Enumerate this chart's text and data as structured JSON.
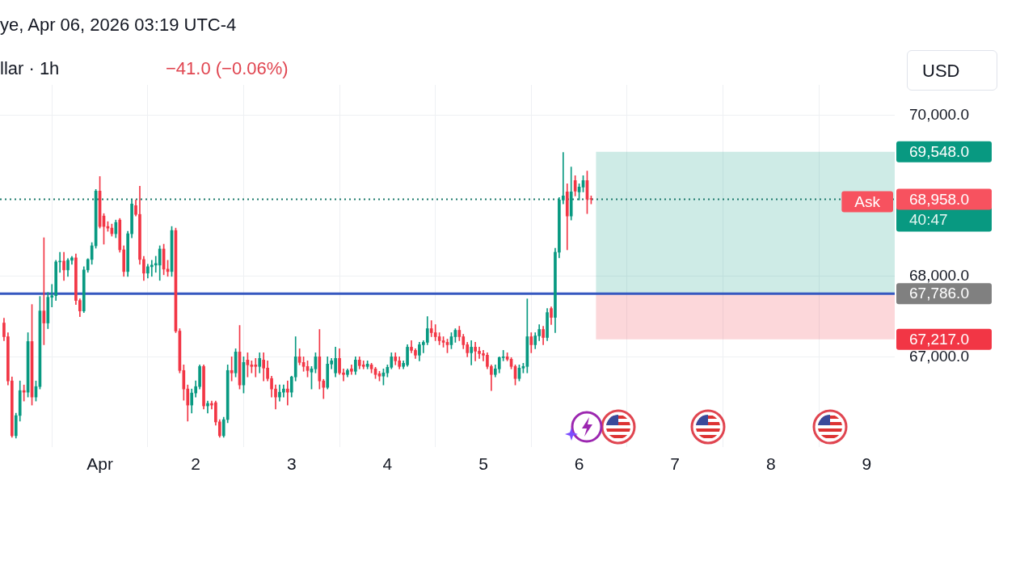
{
  "chart_data": {
    "type": "candlestick",
    "title": "llar · 1h",
    "subtitle": "−41.0 (−0.06%)",
    "annotations": [
      "ye, Apr 06, 2026 03:19 UTC-4",
      "USD",
      {
        "text": "Ask",
        "y": 68958
      },
      "40:47"
    ],
    "x": [
      "2026-03-31T00:00",
      "2026-03-31T01:00",
      "2026-03-31T02:00",
      "2026-03-31T03:00",
      "2026-03-31T04:00",
      "2026-03-31T05:00",
      "2026-03-31T06:00",
      "2026-03-31T07:00",
      "2026-03-31T08:00",
      "2026-03-31T09:00",
      "2026-03-31T10:00",
      "2026-03-31T11:00",
      "2026-03-31T12:00",
      "2026-03-31T13:00",
      "2026-03-31T14:00",
      "2026-03-31T15:00",
      "2026-03-31T16:00",
      "2026-03-31T17:00",
      "2026-03-31T18:00",
      "2026-03-31T19:00",
      "2026-03-31T20:00",
      "2026-03-31T21:00",
      "2026-03-31T22:00",
      "2026-03-31T23:00",
      "2026-04-01T00:00",
      "2026-04-01T01:00",
      "2026-04-01T02:00",
      "2026-04-01T03:00",
      "2026-04-01T04:00",
      "2026-04-01T05:00",
      "2026-04-01T06:00",
      "2026-04-01T07:00",
      "2026-04-01T08:00",
      "2026-04-01T09:00",
      "2026-04-01T10:00",
      "2026-04-01T11:00",
      "2026-04-01T12:00",
      "2026-04-01T13:00",
      "2026-04-01T14:00",
      "2026-04-01T15:00",
      "2026-04-01T16:00",
      "2026-04-01T17:00",
      "2026-04-01T18:00",
      "2026-04-01T19:00",
      "2026-04-01T20:00",
      "2026-04-01T21:00",
      "2026-04-01T22:00",
      "2026-04-01T23:00",
      "2026-04-02T00:00",
      "2026-04-02T01:00",
      "2026-04-02T02:00",
      "2026-04-02T03:00",
      "2026-04-02T04:00",
      "2026-04-02T05:00",
      "2026-04-02T06:00",
      "2026-04-02T07:00",
      "2026-04-02T08:00",
      "2026-04-02T09:00",
      "2026-04-02T10:00",
      "2026-04-02T11:00",
      "2026-04-02T12:00",
      "2026-04-02T13:00",
      "2026-04-02T14:00",
      "2026-04-02T15:00",
      "2026-04-02T16:00",
      "2026-04-02T17:00",
      "2026-04-02T18:00",
      "2026-04-02T19:00",
      "2026-04-02T20:00",
      "2026-04-02T21:00",
      "2026-04-02T22:00",
      "2026-04-02T23:00",
      "2026-04-03T00:00",
      "2026-04-03T01:00",
      "2026-04-03T02:00",
      "2026-04-03T03:00",
      "2026-04-03T04:00",
      "2026-04-03T05:00",
      "2026-04-03T06:00",
      "2026-04-03T07:00",
      "2026-04-03T08:00",
      "2026-04-03T09:00",
      "2026-04-03T10:00",
      "2026-04-03T11:00",
      "2026-04-03T12:00",
      "2026-04-03T13:00",
      "2026-04-03T14:00",
      "2026-04-03T15:00",
      "2026-04-03T16:00",
      "2026-04-03T17:00",
      "2026-04-03T18:00",
      "2026-04-03T19:00",
      "2026-04-03T20:00",
      "2026-04-03T21:00",
      "2026-04-03T22:00",
      "2026-04-03T23:00",
      "2026-04-04T00:00",
      "2026-04-04T01:00",
      "2026-04-04T02:00",
      "2026-04-04T03:00",
      "2026-04-04T04:00",
      "2026-04-04T05:00",
      "2026-04-04T06:00",
      "2026-04-04T07:00",
      "2026-04-04T08:00",
      "2026-04-04T09:00",
      "2026-04-04T10:00",
      "2026-04-04T11:00",
      "2026-04-04T12:00",
      "2026-04-04T13:00",
      "2026-04-04T14:00",
      "2026-04-04T15:00",
      "2026-04-04T16:00",
      "2026-04-04T17:00",
      "2026-04-04T18:00",
      "2026-04-04T19:00",
      "2026-04-04T20:00",
      "2026-04-04T21:00",
      "2026-04-04T22:00",
      "2026-04-04T23:00",
      "2026-04-05T00:00",
      "2026-04-05T01:00",
      "2026-04-05T02:00",
      "2026-04-05T03:00",
      "2026-04-05T04:00",
      "2026-04-05T05:00",
      "2026-04-05T06:00",
      "2026-04-05T07:00",
      "2026-04-05T08:00",
      "2026-04-05T09:00",
      "2026-04-05T10:00",
      "2026-04-05T11:00",
      "2026-04-05T12:00",
      "2026-04-05T13:00",
      "2026-04-05T14:00",
      "2026-04-05T15:00",
      "2026-04-05T16:00",
      "2026-04-05T17:00",
      "2026-04-05T18:00",
      "2026-04-05T19:00",
      "2026-04-05T20:00",
      "2026-04-05T21:00",
      "2026-04-05T22:00",
      "2026-04-05T23:00",
      "2026-04-06T00:00",
      "2026-04-06T01:00",
      "2026-04-06T02:00",
      "2026-04-06T03:00"
    ],
    "ohlc": [
      [
        67420,
        67480,
        67200,
        67250
      ],
      [
        67250,
        67300,
        66650,
        66700
      ],
      [
        66700,
        66750,
        66000,
        66020
      ],
      [
        66020,
        66300,
        65990,
        66270
      ],
      [
        66270,
        66700,
        66200,
        66580
      ],
      [
        66580,
        66650,
        66450,
        66560
      ],
      [
        66560,
        67300,
        66500,
        67190
      ],
      [
        67190,
        67650,
        66400,
        66500
      ],
      [
        66500,
        66700,
        66450,
        66630
      ],
      [
        66630,
        67750,
        66600,
        67570
      ],
      [
        67570,
        68480,
        67150,
        67420
      ],
      [
        67420,
        67800,
        67350,
        67740
      ],
      [
        67740,
        67900,
        67620,
        67760
      ],
      [
        67760,
        68200,
        67700,
        68180
      ],
      [
        68180,
        68300,
        68050,
        68190
      ],
      [
        68190,
        68300,
        67950,
        68080
      ],
      [
        68080,
        68220,
        68000,
        68200
      ],
      [
        68200,
        68250,
        68150,
        68230
      ],
      [
        68230,
        68280,
        67650,
        67700
      ],
      [
        67700,
        67720,
        67500,
        67570
      ],
      [
        67570,
        68120,
        67550,
        68080
      ],
      [
        68080,
        68220,
        68050,
        68210
      ],
      [
        68210,
        68420,
        68150,
        68380
      ],
      [
        68380,
        69080,
        68350,
        69060
      ],
      [
        69060,
        69240,
        68600,
        68620
      ],
      [
        68750,
        68780,
        68400,
        68620
      ],
      [
        68620,
        68680,
        68560,
        68600
      ],
      [
        68600,
        68650,
        68500,
        68530
      ],
      [
        68530,
        68700,
        68480,
        68670
      ],
      [
        68700,
        68720,
        68300,
        68330
      ],
      [
        68330,
        68380,
        68000,
        68060
      ],
      [
        68060,
        68560,
        68000,
        68530
      ],
      [
        68530,
        68950,
        68480,
        68900
      ],
      [
        68880,
        68950,
        68750,
        68770
      ],
      [
        68770,
        69120,
        68150,
        68210
      ],
      [
        68210,
        68250,
        67950,
        68040
      ],
      [
        68040,
        68150,
        67980,
        68120
      ],
      [
        68120,
        68200,
        68000,
        68140
      ],
      [
        68140,
        68250,
        68050,
        68160
      ],
      [
        68140,
        68380,
        67950,
        68340
      ],
      [
        68340,
        68400,
        68020,
        68090
      ],
      [
        68090,
        68200,
        68000,
        68060
      ],
      [
        68060,
        68620,
        68000,
        68570
      ],
      [
        68570,
        68600,
        67300,
        67320
      ],
      [
        67320,
        67350,
        66800,
        66830
      ],
      [
        66830,
        66900,
        66460,
        66600
      ],
      [
        66600,
        66650,
        66200,
        66400
      ],
      [
        66400,
        66600,
        66300,
        66550
      ],
      [
        66550,
        66700,
        66500,
        66630
      ],
      [
        66630,
        66900,
        66600,
        66880
      ],
      [
        66880,
        66900,
        66350,
        66390
      ],
      [
        66390,
        66450,
        66300,
        66420
      ],
      [
        66420,
        66450,
        66350,
        66400
      ],
      [
        66430,
        66450,
        66150,
        66190
      ],
      [
        66190,
        66220,
        66000,
        66020
      ],
      [
        66020,
        66250,
        66000,
        66220
      ],
      [
        66220,
        66900,
        66180,
        66830
      ],
      [
        66830,
        67000,
        66700,
        66800
      ],
      [
        66800,
        67100,
        66750,
        67060
      ],
      [
        67060,
        67390,
        66600,
        66650
      ],
      [
        66650,
        67000,
        66550,
        66930
      ],
      [
        66960,
        67050,
        66750,
        66900
      ],
      [
        66900,
        66950,
        66800,
        66880
      ],
      [
        66900,
        66980,
        66750,
        66880
      ],
      [
        66880,
        67050,
        66800,
        66980
      ],
      [
        66960,
        67050,
        66700,
        66860
      ],
      [
        66860,
        66950,
        66700,
        66730
      ],
      [
        66730,
        66760,
        66500,
        66600
      ],
      [
        66600,
        66650,
        66350,
        66500
      ],
      [
        66500,
        66650,
        66450,
        66560
      ],
      [
        66560,
        66650,
        66500,
        66600
      ],
      [
        66600,
        66700,
        66400,
        66560
      ],
      [
        66560,
        66760,
        66500,
        66750
      ],
      [
        66750,
        67250,
        66700,
        67000
      ],
      [
        67000,
        67100,
        66900,
        66930
      ],
      [
        66930,
        67000,
        66820,
        66880
      ],
      [
        66880,
        66950,
        66750,
        66830
      ],
      [
        66810,
        66880,
        66600,
        66850
      ],
      [
        66850,
        67050,
        66800,
        67000
      ],
      [
        67000,
        67340,
        66600,
        66700
      ],
      [
        66700,
        66720,
        66480,
        66620
      ],
      [
        66620,
        67000,
        66600,
        66910
      ],
      [
        66910,
        66980,
        66850,
        66950
      ],
      [
        66800,
        67120,
        66750,
        66980
      ],
      [
        66980,
        67100,
        66780,
        66800
      ],
      [
        66800,
        66850,
        66700,
        66780
      ],
      [
        66780,
        66850,
        66750,
        66830
      ],
      [
        66850,
        66900,
        66780,
        66820
      ],
      [
        66820,
        67000,
        66780,
        66960
      ],
      [
        66960,
        67000,
        66850,
        66890
      ],
      [
        66900,
        66950,
        66850,
        66880
      ],
      [
        66880,
        66950,
        66850,
        66910
      ],
      [
        66900,
        66920,
        66800,
        66850
      ],
      [
        66850,
        66870,
        66730,
        66780
      ],
      [
        66790,
        66820,
        66700,
        66760
      ],
      [
        66760,
        66850,
        66650,
        66800
      ],
      [
        66800,
        66900,
        66750,
        66870
      ],
      [
        66870,
        67050,
        66850,
        67000
      ],
      [
        67000,
        67050,
        66900,
        66950
      ],
      [
        66950,
        67000,
        66850,
        66880
      ],
      [
        66880,
        66950,
        66850,
        66920
      ],
      [
        66900,
        67150,
        66880,
        67120
      ],
      [
        67120,
        67200,
        67050,
        67080
      ],
      [
        67080,
        67100,
        66980,
        67020
      ],
      [
        67020,
        67180,
        66950,
        67150
      ],
      [
        67150,
        67200,
        67050,
        67180
      ],
      [
        67180,
        67500,
        67150,
        67350
      ],
      [
        67350,
        67450,
        67250,
        67300
      ],
      [
        67300,
        67400,
        67200,
        67250
      ],
      [
        67250,
        67300,
        67150,
        67200
      ],
      [
        67200,
        67250,
        67120,
        67180
      ],
      [
        67180,
        67220,
        67050,
        67150
      ],
      [
        67150,
        67300,
        67100,
        67250
      ],
      [
        67250,
        67350,
        67180,
        67330
      ],
      [
        67330,
        67380,
        67200,
        67250
      ],
      [
        67250,
        67280,
        67100,
        67150
      ],
      [
        67150,
        67180,
        67000,
        67050
      ],
      [
        67050,
        67200,
        66900,
        67120
      ],
      [
        67120,
        67180,
        66950,
        67070
      ],
      [
        67070,
        67120,
        66980,
        67040
      ],
      [
        67040,
        67080,
        66950,
        67020
      ],
      [
        67020,
        67050,
        66850,
        66880
      ],
      [
        66880,
        66900,
        66580,
        66780
      ],
      [
        66780,
        66900,
        66750,
        66850
      ],
      [
        66850,
        67000,
        66800,
        66990
      ],
      [
        66990,
        67080,
        66950,
        67000
      ],
      [
        67000,
        67050,
        66950,
        66970
      ],
      [
        66970,
        66990,
        66850,
        66880
      ],
      [
        66880,
        66900,
        66650,
        66730
      ],
      [
        66730,
        66900,
        66700,
        66860
      ],
      [
        66860,
        66920,
        66800,
        66880
      ],
      [
        66880,
        67720,
        66800,
        67250
      ],
      [
        67250,
        67300,
        67050,
        67150
      ],
      [
        67150,
        67300,
        67100,
        67260
      ],
      [
        67260,
        67400,
        67200,
        67340
      ],
      [
        67340,
        67380,
        67150,
        67240
      ],
      [
        67240,
        67600,
        67200,
        67550
      ],
      [
        67600,
        67620,
        67400,
        67490
      ],
      [
        67490,
        68350,
        67300,
        68300
      ],
      [
        68300,
        68980,
        68230,
        68950
      ],
      [
        68950,
        69540,
        68900,
        69000
      ],
      [
        69050,
        69150,
        68330,
        68750
      ],
      [
        68750,
        69360,
        68700,
        69050
      ],
      [
        69190,
        69250,
        69000,
        69060
      ],
      [
        69050,
        69150,
        68950,
        69110
      ],
      [
        69110,
        69250,
        69050,
        69190
      ],
      [
        69190,
        69310,
        68780,
        68960
      ],
      [
        68960,
        69000,
        68900,
        68958
      ]
    ],
    "xlim": [
      "2026-03-30T23:00",
      "2026-04-09T07:00"
    ],
    "xticks": [
      {
        "value": "2026-04-01",
        "label": "Apr"
      },
      {
        "value": "2026-04-02",
        "label": "2"
      },
      {
        "value": "2026-04-03",
        "label": "3"
      },
      {
        "value": "2026-04-04",
        "label": "4"
      },
      {
        "value": "2026-04-05",
        "label": "5"
      },
      {
        "value": "2026-04-06",
        "label": "6"
      },
      {
        "value": "2026-04-07",
        "label": "7"
      },
      {
        "value": "2026-04-08",
        "label": "8"
      },
      {
        "value": "2026-04-09",
        "label": "9"
      }
    ],
    "ylim": [
      65880,
      70380
    ],
    "yticks": [
      {
        "value": 67000,
        "label": "67,000.0"
      },
      {
        "value": 68000,
        "label": "68,000.0"
      },
      {
        "value": 70000,
        "label": "70,000.0"
      }
    ],
    "grid": true,
    "ref_lines": [
      {
        "axis": "y",
        "value": 67786,
        "label": "67,786.0",
        "color": "#3658c0",
        "line_style": "solid"
      },
      {
        "axis": "y",
        "value": 68958,
        "label": "68,958.0",
        "color": "#1c7a6c",
        "line_style": "dotted"
      }
    ],
    "bands": [
      {
        "axis": "y",
        "from": 67786,
        "to": 69548,
        "label": "69,548.0",
        "color": "#089981"
      },
      {
        "axis": "y",
        "from": 67217,
        "to": 67786,
        "label": "67,217.0",
        "color": "#f23645"
      }
    ]
  }
}
